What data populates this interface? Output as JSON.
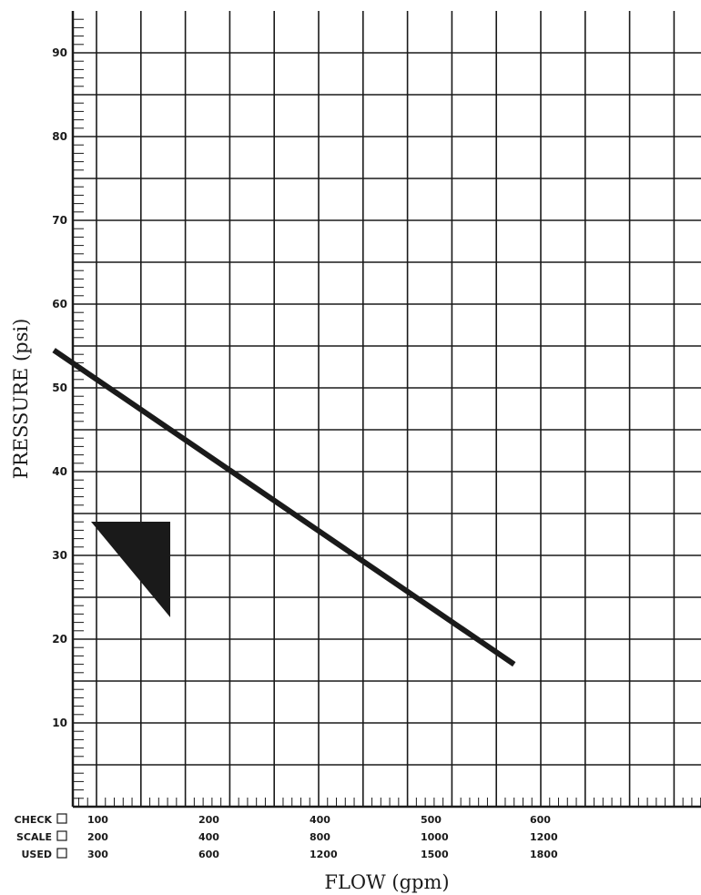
{
  "chart_data": {
    "type": "line",
    "xlabel": "FLOW (gpm)",
    "ylabel": "PRESSURE (psi)",
    "ylim": [
      0,
      95
    ],
    "y_ticks": [
      "10",
      "20",
      "30",
      "40",
      "50",
      "60",
      "70",
      "80",
      "90"
    ],
    "x_major_values": [
      100,
      200,
      300,
      400,
      500,
      600
    ],
    "x_tick_rows": [
      [
        "100",
        "200",
        "400",
        "500",
        "600"
      ],
      [
        "200",
        "400",
        "800",
        "1000",
        "1200"
      ],
      [
        "300",
        "600",
        "1200",
        "1500",
        "1800"
      ]
    ],
    "scale_options": [
      {
        "label": "CHECK",
        "checked": false
      },
      {
        "label": "SCALE",
        "checked": false
      },
      {
        "label": "USED",
        "checked": false
      }
    ],
    "series": [
      {
        "x": [
          52,
          570
        ],
        "y": [
          54.5,
          17
        ],
        "color": "#1a1a1a"
      }
    ],
    "grid": true,
    "marker": {
      "shape": "triangle",
      "color": "#1a1a1a"
    }
  }
}
